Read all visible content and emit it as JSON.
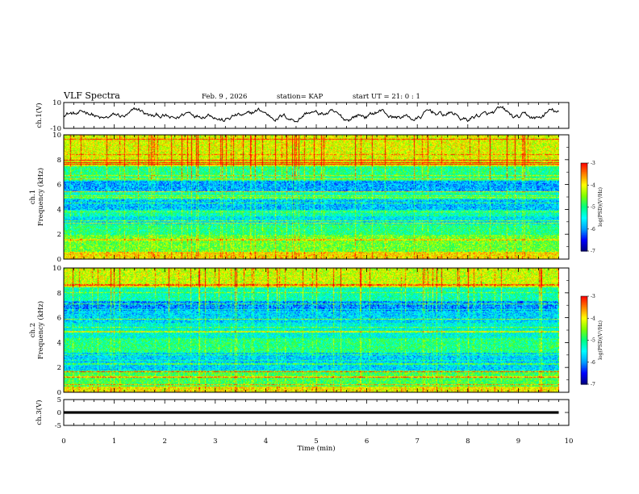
{
  "header": {
    "title": "VLF Spectra",
    "date": "Feb. 9 , 2026",
    "station": "station= KAP",
    "start_ut": "start UT =  21: 0  : 1"
  },
  "colors": {
    "colormap": [
      "#000080",
      "#0000ff",
      "#00a0ff",
      "#00ffff",
      "#00ff80",
      "#80ff00",
      "#ffff00",
      "#ff8000",
      "#ff0000",
      "#ffffff"
    ],
    "waveform": "#000000",
    "ch3_trace": "#000000"
  },
  "chart_data": [
    {
      "type": "line",
      "name": "ch1-waveform",
      "ylabel": "ch.1(V)",
      "ylim": [
        -10,
        10
      ],
      "yticks": [
        "10",
        "-10"
      ],
      "xlim": [
        0,
        10
      ],
      "note": "pseudo-random audio waveform oscillating roughly between -5 and 5 V"
    },
    {
      "type": "heatmap",
      "name": "ch1-spectrogram",
      "ylabel": "ch.1\nFrequency (kHz)",
      "ylabel_lines": [
        "ch.1",
        "Frequency (kHz)"
      ],
      "ylim": [
        0,
        10
      ],
      "yticks": [
        "0",
        "2",
        "4",
        "6",
        "8",
        "10"
      ],
      "xlim": [
        0,
        9.8
      ],
      "colorbar": {
        "label": "log(PSD)(V²/Hz)",
        "range": [
          -7,
          -3
        ],
        "ticks": [
          "-3",
          "-4",
          "-5",
          "-6",
          "-7"
        ]
      },
      "bands": [
        {
          "from": 0.0,
          "to": 0.6,
          "level": -3.9
        },
        {
          "from": 0.6,
          "to": 2.0,
          "level": -4.6
        },
        {
          "from": 2.0,
          "to": 2.8,
          "level": -5.0
        },
        {
          "from": 2.8,
          "to": 3.5,
          "level": -5.6
        },
        {
          "from": 3.5,
          "to": 4.0,
          "level": -5.2
        },
        {
          "from": 4.0,
          "to": 5.0,
          "level": -5.8
        },
        {
          "from": 5.0,
          "to": 5.5,
          "level": -5.2
        },
        {
          "from": 5.5,
          "to": 6.3,
          "level": -5.9
        },
        {
          "from": 6.3,
          "to": 7.5,
          "level": -5.0
        },
        {
          "from": 7.5,
          "to": 10.0,
          "level": -4.1
        }
      ]
    },
    {
      "type": "heatmap",
      "name": "ch2-spectrogram",
      "ylabel": "ch.2\nFrequency (kHz)",
      "ylabel_lines": [
        "ch.2",
        "Frequency (kHz)"
      ],
      "ylim": [
        0,
        10
      ],
      "yticks": [
        "0",
        "2",
        "4",
        "6",
        "8",
        "10"
      ],
      "xlim": [
        0,
        9.8
      ],
      "colorbar": {
        "label": "log(PSD)(V²/Hz)",
        "range": [
          -7,
          -3
        ],
        "ticks": [
          "-3",
          "-4",
          "-5",
          "-6",
          "-7"
        ]
      },
      "bands": [
        {
          "from": 0.0,
          "to": 0.5,
          "level": -4.0
        },
        {
          "from": 0.5,
          "to": 1.8,
          "level": -4.8
        },
        {
          "from": 1.8,
          "to": 3.2,
          "level": -5.7
        },
        {
          "from": 3.2,
          "to": 4.4,
          "level": -5.0
        },
        {
          "from": 4.4,
          "to": 5.6,
          "level": -5.4
        },
        {
          "from": 5.6,
          "to": 6.6,
          "level": -5.7
        },
        {
          "from": 6.6,
          "to": 7.4,
          "level": -6.0
        },
        {
          "from": 7.4,
          "to": 8.5,
          "level": -5.2
        },
        {
          "from": 8.5,
          "to": 10.0,
          "level": -4.2
        }
      ]
    },
    {
      "type": "line",
      "name": "ch3-trace",
      "ylabel": "ch.3(V)",
      "ylim": [
        -5,
        5
      ],
      "yticks": [
        "5",
        "0",
        "-5"
      ],
      "xlim": [
        0,
        10
      ],
      "value_band": [
        -0.5,
        0.5
      ],
      "xticks": [
        "0",
        "1",
        "2",
        "3",
        "4",
        "5",
        "6",
        "7",
        "8",
        "9",
        "10"
      ],
      "xlabel": "Time (min)"
    }
  ]
}
